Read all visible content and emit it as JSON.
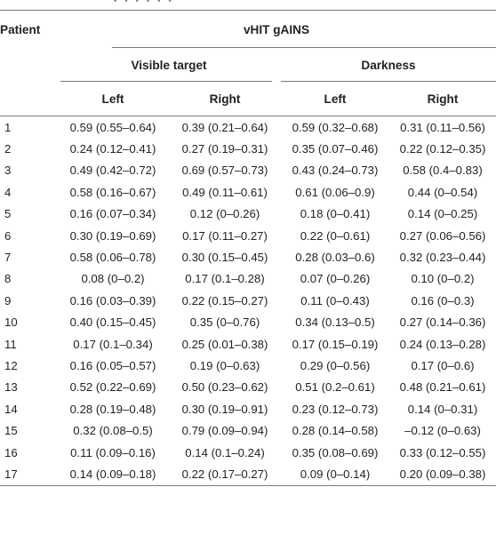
{
  "table": {
    "header": {
      "patient": "Patient",
      "measure": "vHIT gAINS",
      "groups": [
        "Visible target",
        "Darkness"
      ],
      "sides": [
        "Left",
        "Right",
        "Left",
        "Right"
      ]
    },
    "rows": [
      {
        "patient": "1",
        "values": [
          "0.59 (0.55–0.64)",
          "0.39 (0.21–0.64)",
          "0.59 (0.32–0.68)",
          "0.31 (0.11–0.56)"
        ]
      },
      {
        "patient": "2",
        "values": [
          "0.24 (0.12–0.41)",
          "0.27 (0.19–0.31)",
          "0.35 (0.07–0.46)",
          "0.22 (0.12–0.35)"
        ]
      },
      {
        "patient": "3",
        "values": [
          "0.49 (0.42–0.72)",
          "0.69 (0.57–0.73)",
          "0.43 (0.24–0.73)",
          "0.58 (0.4–0.83)"
        ]
      },
      {
        "patient": "4",
        "values": [
          "0.58 (0.16–0.67)",
          "0.49 (0.11–0.61)",
          "0.61 (0.06–0.9)",
          "0.44 (0–0.54)"
        ]
      },
      {
        "patient": "5",
        "values": [
          "0.16 (0.07–0.34)",
          "0.12 (0–0.26)",
          "0.18 (0–0.41)",
          "0.14 (0–0.25)"
        ]
      },
      {
        "patient": "6",
        "values": [
          "0.30 (0.19–0.69)",
          "0.17 (0.11–0.27)",
          "0.22 (0–0.61)",
          "0.27 (0.06–0.56)"
        ]
      },
      {
        "patient": "7",
        "values": [
          "0.58 (0.06–0.78)",
          "0.30 (0.15–0.45)",
          "0.28 (0.03–0.6)",
          "0.32 (0.23–0.44)"
        ]
      },
      {
        "patient": "8",
        "values": [
          "0.08 (0–0.2)",
          "0.17 (0.1–0.28)",
          "0.07 (0–0.26)",
          "0.10 (0–0.2)"
        ]
      },
      {
        "patient": "9",
        "values": [
          "0.16 (0.03–0.39)",
          "0.22 (0.15–0.27)",
          "0.11 (0–0.43)",
          "0.16 (0–0.3)"
        ]
      },
      {
        "patient": "10",
        "values": [
          "0.40 (0.15–0.45)",
          "0.35 (0–0.76)",
          "0.34 (0.13–0.5)",
          "0.27 (0.14–0.36)"
        ]
      },
      {
        "patient": "11",
        "values": [
          "0.17 (0.1–0.34)",
          "0.25 (0.01–0.38)",
          "0.17 (0.15–0.19)",
          "0.24 (0.13–0.28)"
        ]
      },
      {
        "patient": "12",
        "values": [
          "0.16 (0.05–0.57)",
          "0.19 (0–0.63)",
          "0.29 (0–0.56)",
          "0.17 (0–0.6)"
        ]
      },
      {
        "patient": "13",
        "values": [
          "0.52 (0.22–0.69)",
          "0.50 (0.23–0.62)",
          "0.51 (0.2–0.61)",
          "0.48 (0.21–0.61)"
        ]
      },
      {
        "patient": "14",
        "values": [
          "0.28 (0.19–0.48)",
          "0.30 (0.19–0.91)",
          "0.23 (0.12–0.73)",
          "0.14 (0–0.31)"
        ]
      },
      {
        "patient": "15",
        "values": [
          "0.32 (0.08–0.5)",
          "0.79 (0.09–0.94)",
          "0.28 (0.14–0.58)",
          "–0.12 (0–0.63)"
        ]
      },
      {
        "patient": "16",
        "values": [
          "0.11 (0.09–0.16)",
          "0.14 (0.1–0.24)",
          "0.35 (0.08–0.69)",
          "0.33 (0.12–0.55)"
        ]
      },
      {
        "patient": "17",
        "values": [
          "0.14 (0.09–0.18)",
          "0.22 (0.17–0.27)",
          "0.09 (0–0.14)",
          "0.20 (0.09–0.38)"
        ]
      }
    ]
  },
  "colors": {
    "text": "#222222",
    "rule": "#7a7a7a",
    "background": "#ffffff"
  }
}
